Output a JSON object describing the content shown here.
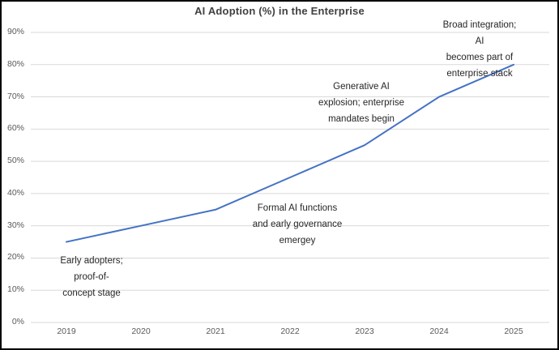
{
  "chart_data": {
    "type": "line",
    "title": "AI Adoption (%) in the Enterprise",
    "categories": [
      "2019",
      "2020",
      "2021",
      "2022",
      "2023",
      "2024",
      "2025"
    ],
    "values": [
      25,
      30,
      35,
      45,
      55,
      70,
      80
    ],
    "xlabel": "",
    "ylabel": "",
    "ylim": [
      0,
      90
    ],
    "ytick_step": 10,
    "ytick_labels": [
      "0%",
      "10%",
      "20%",
      "30%",
      "40%",
      "50%",
      "60%",
      "70%",
      "80%",
      "90%"
    ],
    "grid": "horizontal",
    "legend": "none",
    "colors": {
      "line": "#4472C4",
      "grid": "#D9D9D9",
      "title_text": "#404040",
      "tick_text": "#595959",
      "annotation_text": "#262626",
      "frame_border": "#000000",
      "background": "#FFFFFF"
    },
    "annotations": [
      {
        "text": "Early adopters;\nproof-of-\nconcept stage",
        "near_year": "2019"
      },
      {
        "text": "Formal AI functions\nand early governance\nemergey",
        "near_year": "2021"
      },
      {
        "text": "Generative AI\nexplosion; enterprise\nmandates begin",
        "near_year": "2023"
      },
      {
        "text": "Broad integration; AI\nbecomes part of\nenterprise stack",
        "near_year": "2025"
      }
    ]
  }
}
